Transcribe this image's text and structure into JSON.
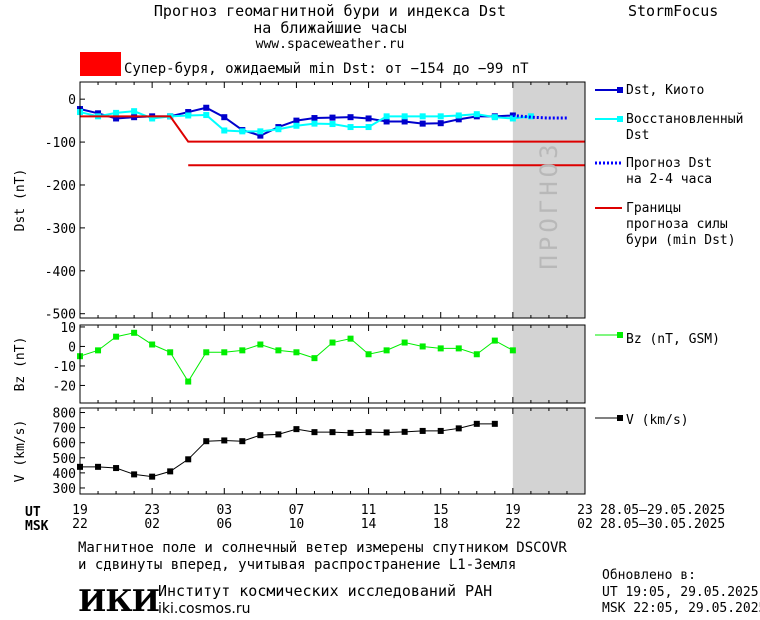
{
  "header": {
    "title_line1": "Прогноз геомагнитной бури и индекса Dst",
    "title_line2": "на ближайшие часы",
    "brand": "StormFocus",
    "url": "www.spaceweather.ru",
    "alert_color": "#ff0000",
    "alert_text": "Супер-буря, ожидаемый min Dst: от −154 до −99 nT"
  },
  "legend": {
    "dst_kyoto": "Dst, Киото",
    "dst_restored_1": "Восстановленный",
    "dst_restored_2": "Dst",
    "dst_forecast_1": "Прогноз Dst",
    "dst_forecast_2": "на 2-4 часа",
    "bounds_1": "Границы",
    "bounds_2": "прогноза силы",
    "bounds_3": "бури (min Dst)",
    "bz": "Bz (nT, GSM)",
    "v": "V (km/s)"
  },
  "forecast_label": "ПРОГНОЗ",
  "time_axis": {
    "ut_label": "UT",
    "msk_label": "MSK",
    "ut_ticks": [
      "19",
      "23",
      "03",
      "07",
      "11",
      "15",
      "19",
      "23"
    ],
    "msk_ticks": [
      "22",
      "02",
      "06",
      "10",
      "14",
      "18",
      "22",
      "02"
    ],
    "ut_range": "28.05–29.05.2025",
    "msk_range": "28.05–30.05.2025"
  },
  "footer": {
    "line1": "Магнитное поле и солнечный ветер измерены спутником DSCOVR",
    "line2": "и сдвинуты вперед, учитывая распространение L1-Земля",
    "updated_label": "Обновлено в:",
    "updated_ut": "UT  19:05, 29.05.2025",
    "updated_msk": "MSK 22:05, 29.05.2025",
    "logo": "ИКИ",
    "institute": "Институт космических исследований РАН",
    "site": "iki.cosmos.ru"
  },
  "colors": {
    "dst_kyoto": "#0000cc",
    "dst_restored": "#00ffff",
    "forecast": "#0000ff",
    "bounds": "#dd0000",
    "bz": "#00ee00",
    "v": "#000000",
    "forecast_zone": "#d3d3d3"
  },
  "chart_data": [
    {
      "type": "line",
      "panel": "dst",
      "ylabel": "Dst (nT)",
      "x_unit": "hours since 19 UT 28.05",
      "ylim": [
        -510,
        40
      ],
      "yticks": [
        0,
        -100,
        -200,
        -300,
        -400,
        -500
      ],
      "xlim": [
        0,
        28
      ],
      "forecast_zone": [
        24,
        28
      ],
      "series": [
        {
          "name": "Dst, Киото",
          "x": [
            0,
            1,
            2,
            3,
            4,
            5,
            6,
            7,
            8,
            9,
            10,
            11,
            12,
            13,
            14,
            15,
            16,
            17,
            18,
            19,
            20,
            21,
            22,
            23,
            24
          ],
          "y": [
            -23,
            -33,
            -45,
            -42,
            -40,
            -40,
            -30,
            -20,
            -42,
            -72,
            -85,
            -65,
            -50,
            -44,
            -43,
            -42,
            -45,
            -52,
            -52,
            -57,
            -56,
            -47,
            -40,
            -40,
            -38
          ]
        },
        {
          "name": "Восстановленный Dst",
          "x": [
            0,
            1,
            2,
            3,
            4,
            5,
            6,
            7,
            8,
            9,
            10,
            11,
            12,
            13,
            14,
            15,
            16,
            17,
            18,
            19,
            20,
            21,
            22,
            23,
            24,
            25
          ],
          "y": [
            -30,
            -40,
            -32,
            -28,
            -45,
            -40,
            -38,
            -37,
            -73,
            -75,
            -75,
            -70,
            -62,
            -57,
            -58,
            -65,
            -65,
            -40,
            -40,
            -40,
            -40,
            -38,
            -35,
            -42,
            -45,
            -40
          ]
        },
        {
          "name": "Прогноз Dst на 2-4 часа",
          "x": [
            24,
            25,
            26,
            27
          ],
          "y": [
            -38,
            -42,
            -44,
            -44
          ]
        },
        {
          "name": "Границы прогноза силы бури (min Dst)",
          "lines": [
            {
              "x": [
                0,
                5,
                6,
                28
              ],
              "y": [
                -40,
                -40,
                -99,
                -99
              ]
            },
            {
              "x": [
                6,
                28
              ],
              "y": [
                -154,
                -154
              ]
            }
          ]
        }
      ]
    },
    {
      "type": "line",
      "panel": "bz",
      "ylabel": "Bz (nT)",
      "ylim": [
        -29,
        11
      ],
      "yticks": [
        10,
        0,
        -10,
        -20
      ],
      "xlim": [
        0,
        28
      ],
      "forecast_zone": [
        24,
        28
      ],
      "series": [
        {
          "name": "Bz (nT, GSM)",
          "x": [
            0,
            1,
            2,
            3,
            4,
            5,
            6,
            7,
            8,
            9,
            10,
            11,
            12,
            13,
            14,
            15,
            16,
            17,
            18,
            19,
            20,
            21,
            22,
            23,
            24,
            25
          ],
          "y": [
            -5,
            -2,
            5,
            7,
            1,
            -3,
            -18,
            -3,
            -3,
            -2,
            1,
            -2,
            -3,
            -6,
            2,
            4,
            -4,
            -2,
            2,
            0,
            -1,
            -1,
            -4,
            3,
            -2,
            null
          ]
        }
      ]
    },
    {
      "type": "line",
      "panel": "v",
      "ylabel": "V (km/s)",
      "ylim": [
        260,
        830
      ],
      "yticks": [
        800,
        700,
        600,
        500,
        400,
        300
      ],
      "xlim": [
        0,
        28
      ],
      "forecast_zone": [
        24,
        28
      ],
      "series": [
        {
          "name": "V (km/s)",
          "x": [
            0,
            1,
            2,
            3,
            4,
            5,
            6,
            7,
            8,
            9,
            10,
            11,
            12,
            13,
            14,
            15,
            16,
            17,
            18,
            19,
            20,
            21,
            22,
            23,
            24,
            25
          ],
          "y": [
            440,
            440,
            432,
            390,
            375,
            410,
            490,
            610,
            615,
            610,
            650,
            655,
            690,
            670,
            670,
            665,
            670,
            668,
            672,
            678,
            678,
            695,
            725,
            725,
            null,
            null
          ]
        }
      ]
    }
  ]
}
